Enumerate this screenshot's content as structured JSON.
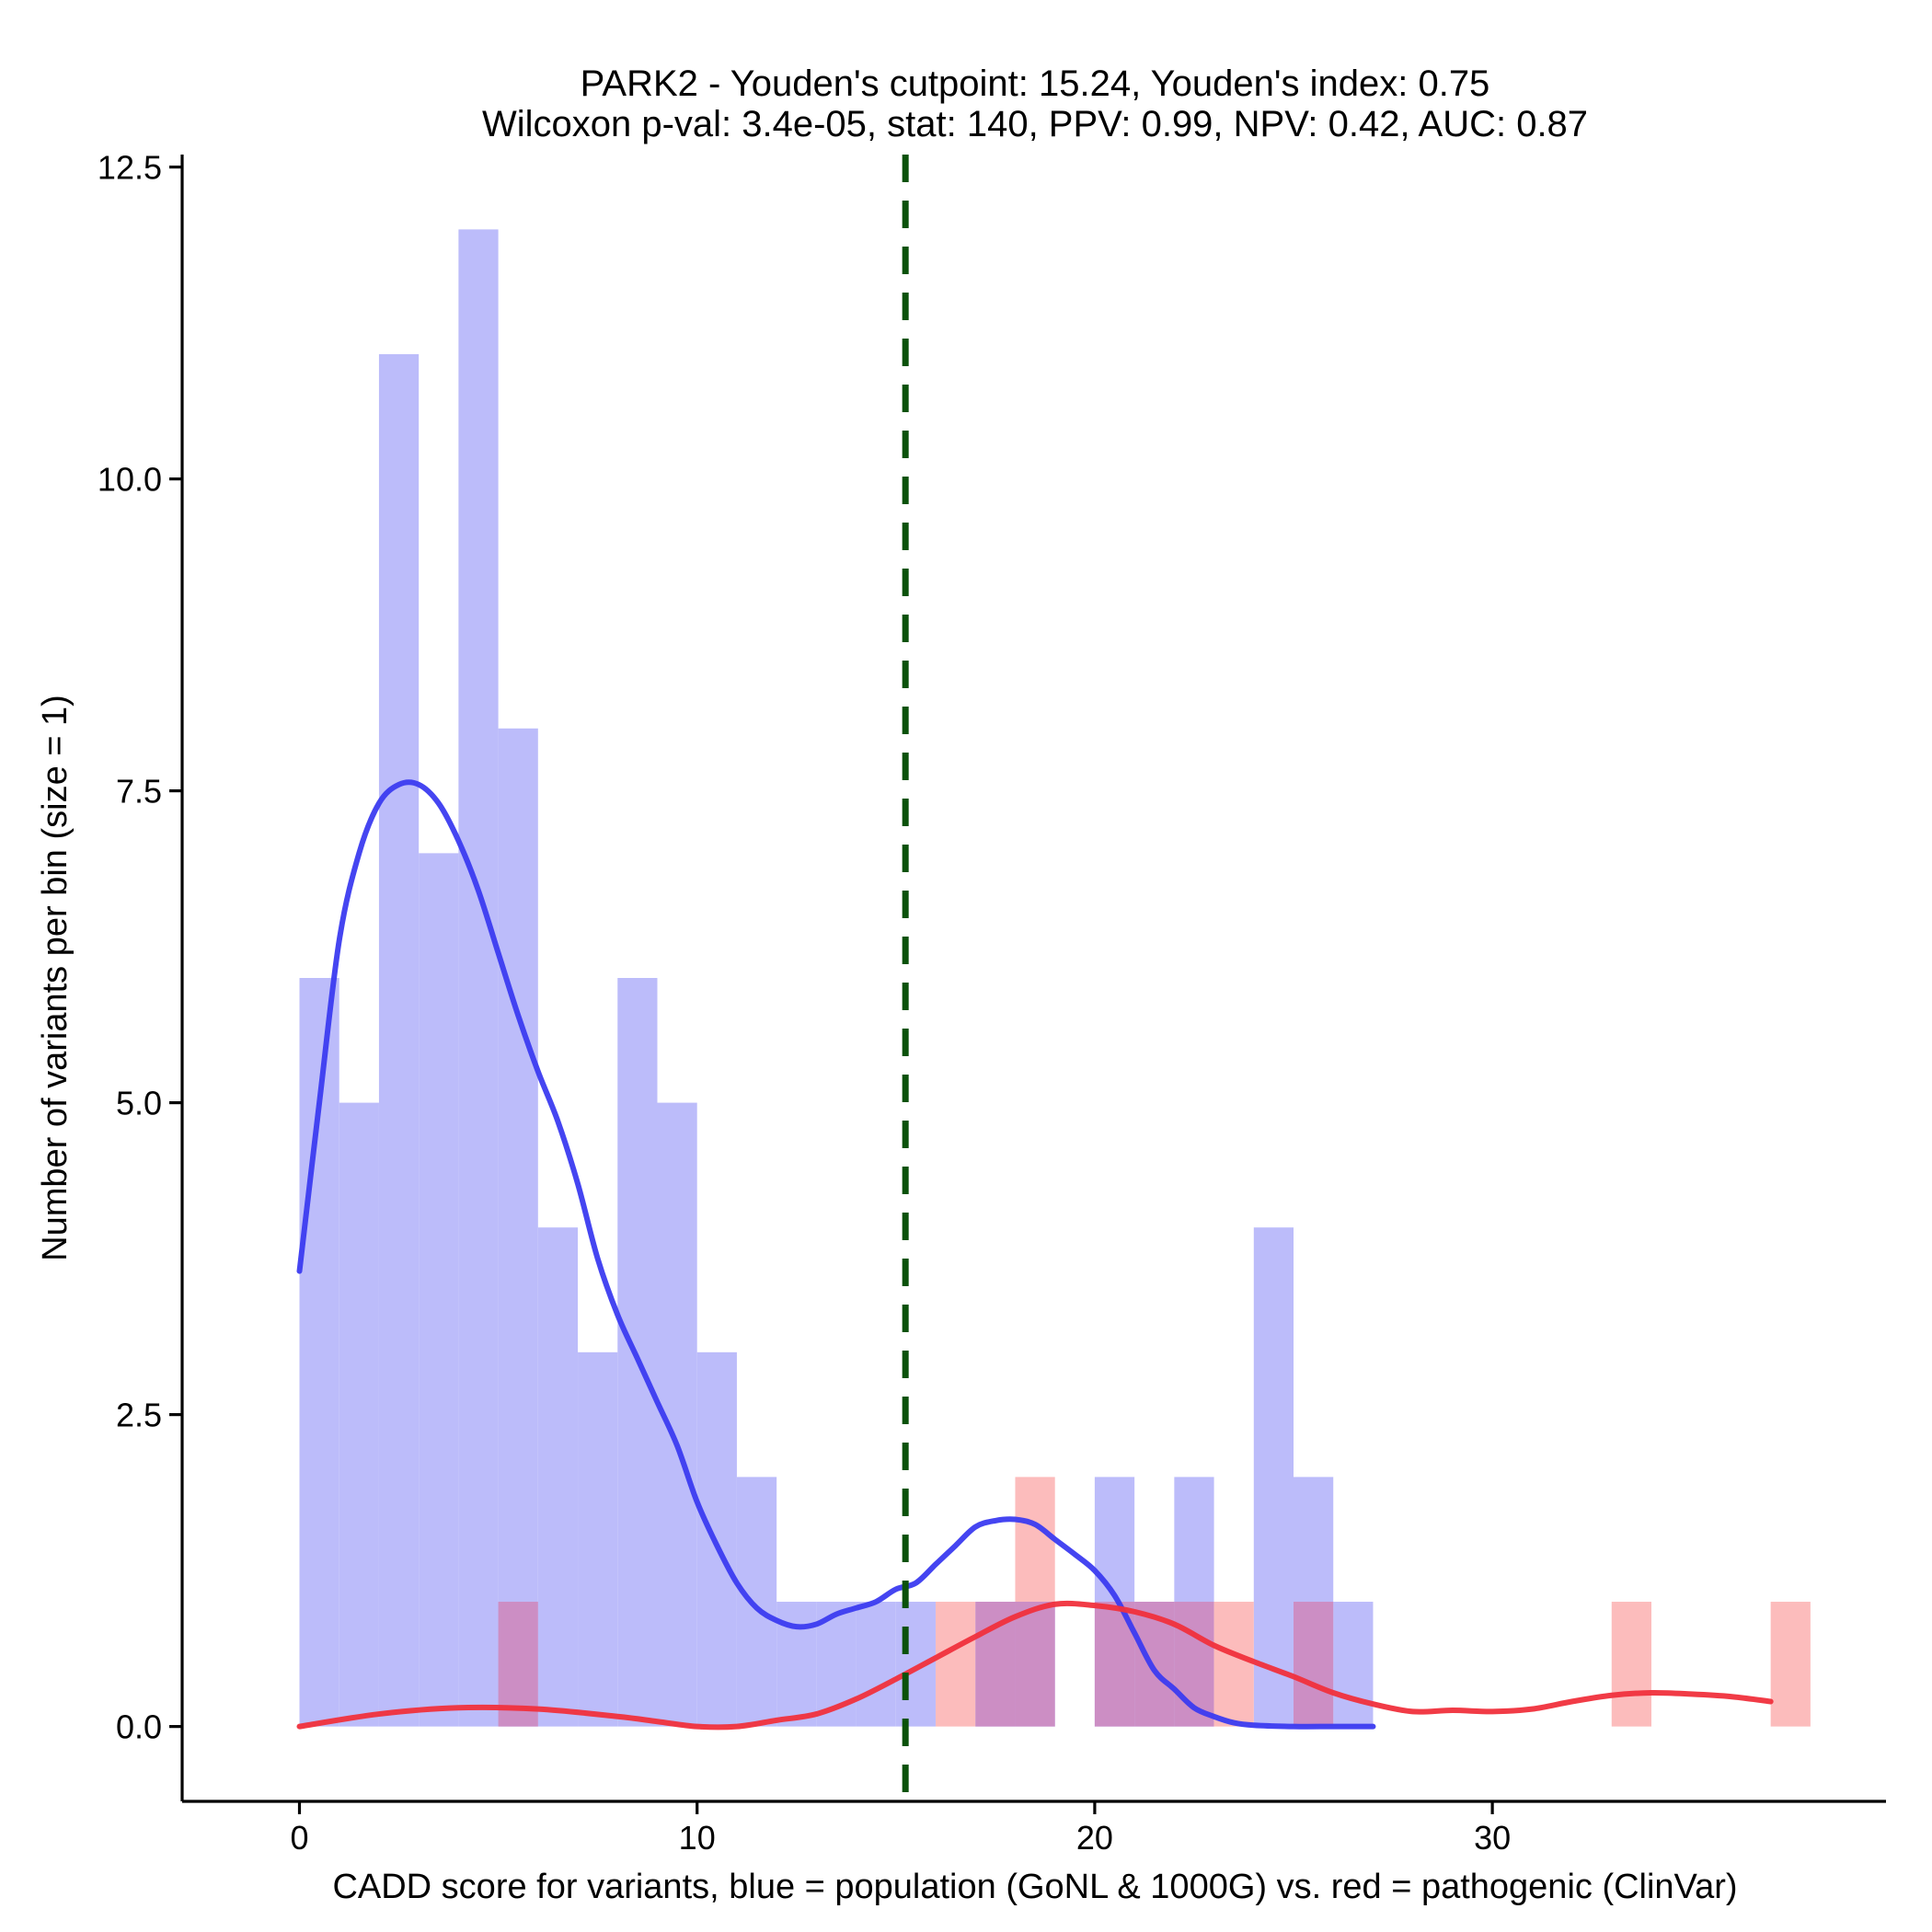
{
  "chart_data": {
    "type": "histogram",
    "title": "PARK2 - Youden's cutpoint: 15.24, Youden's index: 0.75",
    "subtitle": "Wilcoxon p-val: 3.4e-05, stat: 140, PPV: 0.99, NPV: 0.42, AUC: 0.87",
    "xlabel": "CADD score for variants, blue = population (GoNL & 1000G) vs. red = pathogenic (ClinVar)",
    "ylabel": "Number of variants per bin (size = 1)",
    "xlim": [
      -2.95,
      39.9
    ],
    "ylim": [
      -0.6,
      12.6
    ],
    "x_ticks": [
      0,
      10,
      20,
      30
    ],
    "x_tick_labels": [
      "0",
      "10",
      "20",
      "30"
    ],
    "y_ticks": [
      0,
      2.5,
      5,
      7.5,
      10,
      12.5
    ],
    "y_tick_labels": [
      "0.0",
      "2.5",
      "5.0",
      "7.5",
      "10.0",
      "12.5"
    ],
    "bin_size": 1,
    "cutpoint": 15.24,
    "series": [
      {
        "name": "population (GoNL & 1000G)",
        "color": "#7b7bf2",
        "bins": [
          {
            "start": 0,
            "count": 6
          },
          {
            "start": 1,
            "count": 5
          },
          {
            "start": 2,
            "count": 11
          },
          {
            "start": 3,
            "count": 7
          },
          {
            "start": 4,
            "count": 12
          },
          {
            "start": 5,
            "count": 8
          },
          {
            "start": 6,
            "count": 4
          },
          {
            "start": 7,
            "count": 3
          },
          {
            "start": 8,
            "count": 6
          },
          {
            "start": 9,
            "count": 5
          },
          {
            "start": 10,
            "count": 3
          },
          {
            "start": 11,
            "count": 2
          },
          {
            "start": 12,
            "count": 1
          },
          {
            "start": 13,
            "count": 1
          },
          {
            "start": 14,
            "count": 1
          },
          {
            "start": 15,
            "count": 1
          },
          {
            "start": 17,
            "count": 1
          },
          {
            "start": 18,
            "count": 1
          },
          {
            "start": 20,
            "count": 2
          },
          {
            "start": 21,
            "count": 1
          },
          {
            "start": 22,
            "count": 2
          },
          {
            "start": 24,
            "count": 4
          },
          {
            "start": 25,
            "count": 2
          },
          {
            "start": 26,
            "count": 1
          }
        ],
        "density": [
          [
            0,
            3.65
          ],
          [
            0.5,
            5.0
          ],
          [
            1,
            6.3
          ],
          [
            1.5,
            7.0
          ],
          [
            2,
            7.4
          ],
          [
            2.5,
            7.55
          ],
          [
            3,
            7.55
          ],
          [
            3.5,
            7.4
          ],
          [
            4,
            7.1
          ],
          [
            4.5,
            6.7
          ],
          [
            5,
            6.2
          ],
          [
            5.5,
            5.7
          ],
          [
            6,
            5.25
          ],
          [
            6.5,
            4.85
          ],
          [
            7,
            4.35
          ],
          [
            7.5,
            3.75
          ],
          [
            8,
            3.3
          ],
          [
            8.5,
            2.95
          ],
          [
            9,
            2.6
          ],
          [
            9.5,
            2.25
          ],
          [
            10,
            1.8
          ],
          [
            10.5,
            1.45
          ],
          [
            11,
            1.15
          ],
          [
            11.5,
            0.95
          ],
          [
            12,
            0.85
          ],
          [
            12.5,
            0.8
          ],
          [
            13,
            0.82
          ],
          [
            13.5,
            0.9
          ],
          [
            14,
            0.95
          ],
          [
            14.5,
            1.0
          ],
          [
            15,
            1.1
          ],
          [
            15.5,
            1.15
          ],
          [
            16,
            1.3
          ],
          [
            16.5,
            1.45
          ],
          [
            17,
            1.6
          ],
          [
            17.5,
            1.65
          ],
          [
            18,
            1.66
          ],
          [
            18.5,
            1.62
          ],
          [
            19,
            1.5
          ],
          [
            19.5,
            1.38
          ],
          [
            20,
            1.25
          ],
          [
            20.5,
            1.05
          ],
          [
            21,
            0.75
          ],
          [
            21.5,
            0.45
          ],
          [
            22,
            0.3
          ],
          [
            22.5,
            0.15
          ],
          [
            23,
            0.08
          ],
          [
            23.5,
            0.03
          ],
          [
            24,
            0.01
          ],
          [
            25,
            0.0
          ],
          [
            26,
            0.0
          ],
          [
            27,
            0.0
          ]
        ]
      },
      {
        "name": "pathogenic (ClinVar)",
        "color": "#f07878",
        "bins": [
          {
            "start": 5,
            "count": 1
          },
          {
            "start": 16,
            "count": 1
          },
          {
            "start": 17,
            "count": 1
          },
          {
            "start": 18,
            "count": 2
          },
          {
            "start": 20,
            "count": 1
          },
          {
            "start": 21,
            "count": 1
          },
          {
            "start": 22,
            "count": 1
          },
          {
            "start": 23,
            "count": 1
          },
          {
            "start": 25,
            "count": 1
          },
          {
            "start": 33,
            "count": 1
          },
          {
            "start": 37,
            "count": 1
          }
        ],
        "density": [
          [
            0,
            0.0
          ],
          [
            2,
            0.1
          ],
          [
            4,
            0.15
          ],
          [
            6,
            0.14
          ],
          [
            8,
            0.08
          ],
          [
            9,
            0.04
          ],
          [
            10,
            0.0
          ],
          [
            11,
            0.0
          ],
          [
            12,
            0.05
          ],
          [
            13,
            0.1
          ],
          [
            14,
            0.22
          ],
          [
            15,
            0.38
          ],
          [
            16,
            0.55
          ],
          [
            17,
            0.72
          ],
          [
            18,
            0.88
          ],
          [
            19,
            0.98
          ],
          [
            20,
            0.97
          ],
          [
            21,
            0.92
          ],
          [
            22,
            0.82
          ],
          [
            23,
            0.65
          ],
          [
            24,
            0.52
          ],
          [
            25,
            0.4
          ],
          [
            26,
            0.27
          ],
          [
            27,
            0.18
          ],
          [
            28,
            0.12
          ],
          [
            29,
            0.13
          ],
          [
            30,
            0.12
          ],
          [
            31,
            0.14
          ],
          [
            32,
            0.2
          ],
          [
            33,
            0.25
          ],
          [
            34,
            0.27
          ],
          [
            35,
            0.26
          ],
          [
            36,
            0.24
          ],
          [
            37,
            0.2
          ]
        ]
      }
    ]
  },
  "colors": {
    "population_fill": "#bcbcfa",
    "population_line": "#3b3bf0",
    "pathogenic_fill": "#fcbcbc",
    "pathogenic_line": "#f0303c",
    "overlap_fill": "#cc8ec4",
    "cutpoint_line": "#0b520b"
  }
}
